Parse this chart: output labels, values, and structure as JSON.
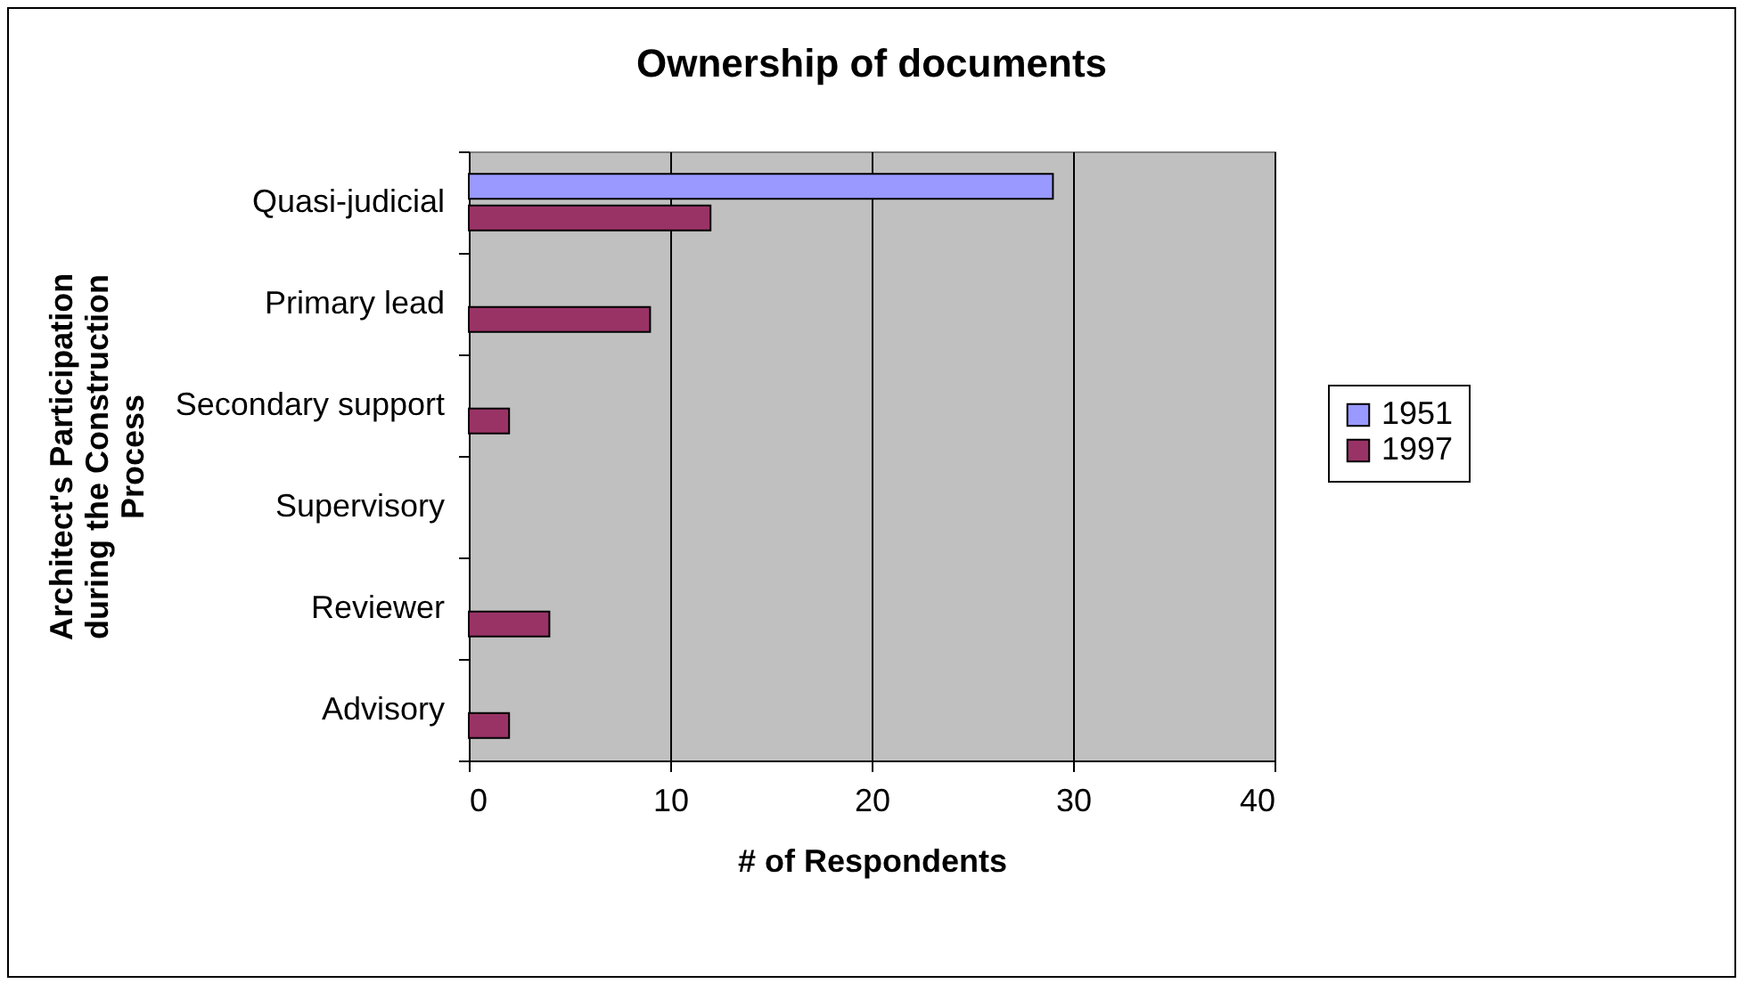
{
  "chart_data": {
    "type": "bar",
    "orientation": "horizontal",
    "title": "Ownership of documents",
    "xlabel": "# of Respondents",
    "ylabel": "Architect's Participation during the Construction Process",
    "categories": [
      "Quasi-judicial",
      "Primary lead",
      "Secondary support",
      "Supervisory",
      "Reviewer",
      "Advisory"
    ],
    "series": [
      {
        "name": "1951",
        "color": "#9999ff",
        "values": [
          29,
          null,
          null,
          null,
          null,
          null
        ]
      },
      {
        "name": "1997",
        "color": "#993366",
        "values": [
          12,
          9,
          2,
          null,
          4,
          2
        ]
      }
    ],
    "xlim": [
      0,
      40
    ],
    "xticks": [
      0,
      10,
      20,
      30,
      40
    ],
    "grid": "x",
    "legend": "right"
  }
}
